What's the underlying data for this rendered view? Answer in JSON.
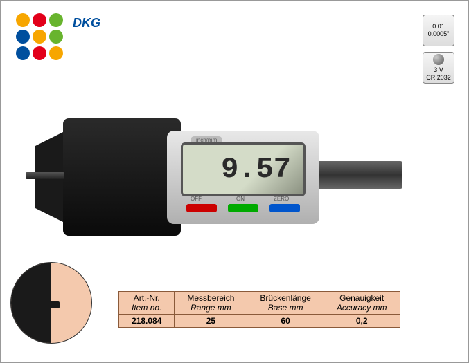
{
  "logo": {
    "dot_colors": [
      "#f7a600",
      "#e2001a",
      "#68b42e",
      "#004f9e",
      "#f7a600",
      "#68b42e",
      "#004f9e",
      "#e2001a",
      "#f7a600"
    ],
    "brand_text": "DKG",
    "brand_color": "#004f9e"
  },
  "badges": {
    "resolution": {
      "line1": "0.01",
      "line2": "0.0005\""
    },
    "battery": {
      "line1": "3 V",
      "line2": "CR 2032"
    }
  },
  "product": {
    "display_value": "9.57",
    "unit_label": "inch/mm",
    "buttons": {
      "off": "OFF",
      "on": "ON",
      "zero": "ZERO"
    },
    "colors": {
      "body_black": "#1a1a1a",
      "body_silver_top": "#e8e8e8",
      "body_silver_bottom": "#b0b0b0",
      "lcd_bg": "#d4dcc8",
      "btn_off": "#c00000",
      "btn_on": "#0aa000",
      "btn_zero": "#0055cc"
    }
  },
  "detail_circle": {
    "bg": "#f4c9ad"
  },
  "table": {
    "bg_color": "#f4c9ad",
    "border_color": "#8a5a3a",
    "headers": [
      {
        "de": "Art.-Nr.",
        "en": "Item no."
      },
      {
        "de": "Messbereich",
        "en": "Range mm"
      },
      {
        "de": "Brückenlänge",
        "en": "Base mm"
      },
      {
        "de": "Genauigkeit",
        "en": "Accuracy mm"
      }
    ],
    "row": {
      "item_no": "218.084",
      "range_mm": "25",
      "base_mm": "60",
      "accuracy_mm": "0,2"
    }
  }
}
